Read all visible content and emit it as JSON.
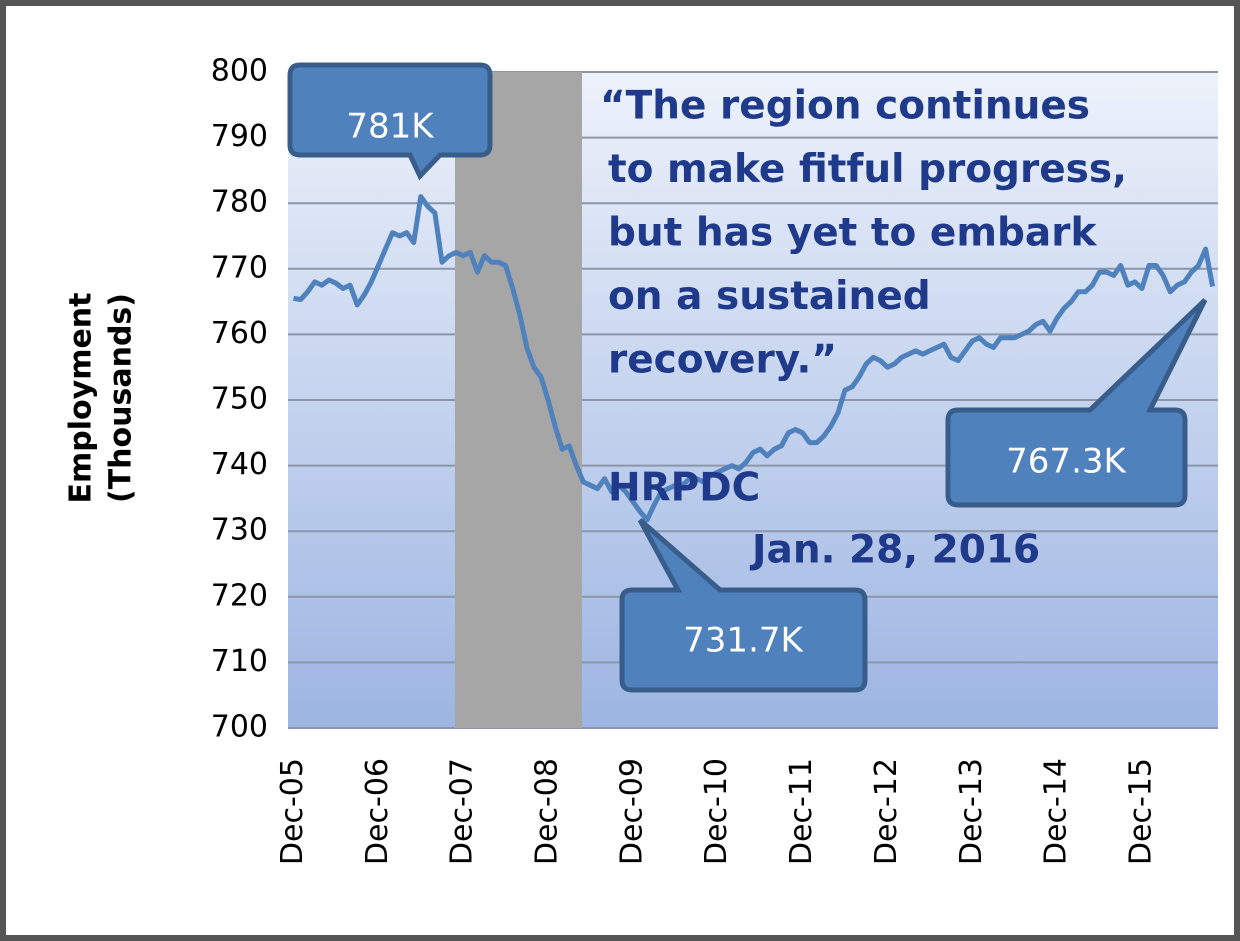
{
  "chart_data": {
    "type": "line",
    "ylabel": [
      "Employment",
      "(Thousands)"
    ],
    "categories": [
      "Dec-05",
      null,
      null,
      null,
      null,
      null,
      null,
      null,
      null,
      null,
      null,
      null,
      "Dec-06",
      null,
      null,
      null,
      null,
      null,
      null,
      null,
      null,
      null,
      null,
      null,
      "Dec-07",
      null,
      null,
      null,
      null,
      null,
      null,
      null,
      null,
      null,
      null,
      null,
      "Dec-08",
      null,
      null,
      null,
      null,
      null,
      null,
      null,
      null,
      null,
      null,
      null,
      "Dec-09",
      null,
      null,
      null,
      null,
      null,
      null,
      null,
      null,
      null,
      null,
      null,
      "Dec-10",
      null,
      null,
      null,
      null,
      null,
      null,
      null,
      null,
      null,
      null,
      null,
      "Dec-11",
      null,
      null,
      null,
      null,
      null,
      null,
      null,
      null,
      null,
      null,
      null,
      "Dec-12",
      null,
      null,
      null,
      null,
      null,
      null,
      null,
      null,
      null,
      null,
      null,
      "Dec-13",
      null,
      null,
      null,
      null,
      null,
      null,
      null,
      null,
      null,
      null,
      null,
      "Dec-14",
      null,
      null,
      null,
      null,
      null,
      null,
      null,
      null,
      null,
      null,
      null,
      "Dec-15",
      null,
      null,
      null,
      null,
      null,
      null,
      null,
      null,
      null,
      null
    ],
    "series": [
      {
        "name": "Employment",
        "color": "#4f81bd",
        "values": [
          765.5,
          765.3,
          766.5,
          768,
          767.5,
          768.3,
          767.8,
          767,
          767.5,
          764.5,
          766,
          768,
          770.5,
          773,
          775.5,
          775,
          775.5,
          774,
          781,
          779.5,
          778.5,
          771,
          772,
          772.5,
          772,
          772.5,
          769.5,
          772,
          771,
          771,
          770.5,
          767,
          763,
          758,
          755,
          753.5,
          750,
          746,
          742.5,
          743,
          740,
          737.5,
          737,
          736.5,
          738,
          736,
          737,
          736,
          734.5,
          733,
          731.7,
          734,
          736,
          736.5,
          737,
          737,
          738,
          738,
          737.5,
          738.5,
          739,
          739.5,
          740,
          739.5,
          740.5,
          742,
          742.5,
          741.5,
          742.5,
          743,
          745,
          745.5,
          745,
          743.5,
          743.5,
          744.5,
          746,
          748,
          751.5,
          752,
          753.5,
          755.5,
          756.5,
          756,
          755,
          755.5,
          756.5,
          757,
          757.5,
          757,
          757.5,
          758,
          758.5,
          756.5,
          756,
          757.5,
          759,
          759.5,
          758.5,
          758,
          759.5,
          759.5,
          759.5,
          760,
          760.5,
          761.5,
          762,
          760.5,
          762.5,
          764,
          765,
          766.5,
          766.5,
          767.5,
          769.5,
          769.5,
          769,
          770.5,
          767.5,
          768,
          767,
          770.5,
          770.5,
          769,
          766.5,
          767.5,
          768,
          769.5,
          770.5,
          773,
          767.3
        ]
      }
    ],
    "ylim": [
      700,
      800
    ],
    "yticks": [
      700,
      710,
      720,
      730,
      740,
      750,
      760,
      770,
      780,
      790,
      800
    ],
    "grid": true,
    "annotations": {
      "peak": "781K",
      "trough": "731.7K",
      "latest": "767.3K",
      "quote": [
        "“The region continues",
        "to make fitful progress,",
        "but has yet to embark",
        "on a sustained",
        "recovery.”"
      ],
      "source": "HRPDC",
      "date": "Jan. 28, 2016"
    }
  }
}
